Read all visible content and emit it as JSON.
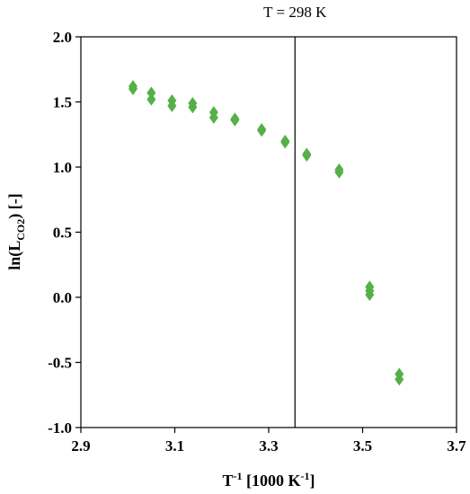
{
  "chart_data": {
    "type": "scatter",
    "xlabel_main": "T",
    "xlabel_sup": "-1",
    "xlabel_rest1": " [1000 K",
    "xlabel_rest_sup": "-1",
    "xlabel_rest2": "]",
    "ylabel_main": "ln(L",
    "ylabel_sub": "CO2",
    "ylabel_rest": ") [-]",
    "xlim": [
      2.9,
      3.7
    ],
    "ylim": [
      -1.0,
      2.0
    ],
    "x_ticks": [
      "2.9",
      "3.1",
      "3.3",
      "3.5",
      "3.7"
    ],
    "x_tick_values": [
      2.9,
      3.1,
      3.3,
      3.5,
      3.7
    ],
    "y_ticks": [
      "-1.0",
      "-0.5",
      "0.0",
      "0.5",
      "1.0",
      "1.5",
      "2.0"
    ],
    "y_tick_values": [
      -1.0,
      -0.5,
      0.0,
      0.5,
      1.0,
      1.5,
      2.0
    ],
    "grid": false,
    "marker_color": "#55b048",
    "reference_line": {
      "x": 3.356,
      "label": "T = 298 K"
    },
    "points": [
      {
        "x": 3.011,
        "y": 1.62
      },
      {
        "x": 3.011,
        "y": 1.6
      },
      {
        "x": 3.05,
        "y": 1.57
      },
      {
        "x": 3.05,
        "y": 1.52
      },
      {
        "x": 3.094,
        "y": 1.51
      },
      {
        "x": 3.094,
        "y": 1.47
      },
      {
        "x": 3.138,
        "y": 1.49
      },
      {
        "x": 3.138,
        "y": 1.46
      },
      {
        "x": 3.183,
        "y": 1.42
      },
      {
        "x": 3.183,
        "y": 1.38
      },
      {
        "x": 3.228,
        "y": 1.37
      },
      {
        "x": 3.228,
        "y": 1.36
      },
      {
        "x": 3.285,
        "y": 1.29
      },
      {
        "x": 3.285,
        "y": 1.28
      },
      {
        "x": 3.335,
        "y": 1.2
      },
      {
        "x": 3.335,
        "y": 1.19
      },
      {
        "x": 3.381,
        "y": 1.1
      },
      {
        "x": 3.381,
        "y": 1.09
      },
      {
        "x": 3.45,
        "y": 0.98
      },
      {
        "x": 3.45,
        "y": 0.96
      },
      {
        "x": 3.515,
        "y": 0.08
      },
      {
        "x": 3.515,
        "y": 0.05
      },
      {
        "x": 3.515,
        "y": 0.02
      },
      {
        "x": 3.578,
        "y": -0.59
      },
      {
        "x": 3.578,
        "y": -0.63
      }
    ]
  }
}
